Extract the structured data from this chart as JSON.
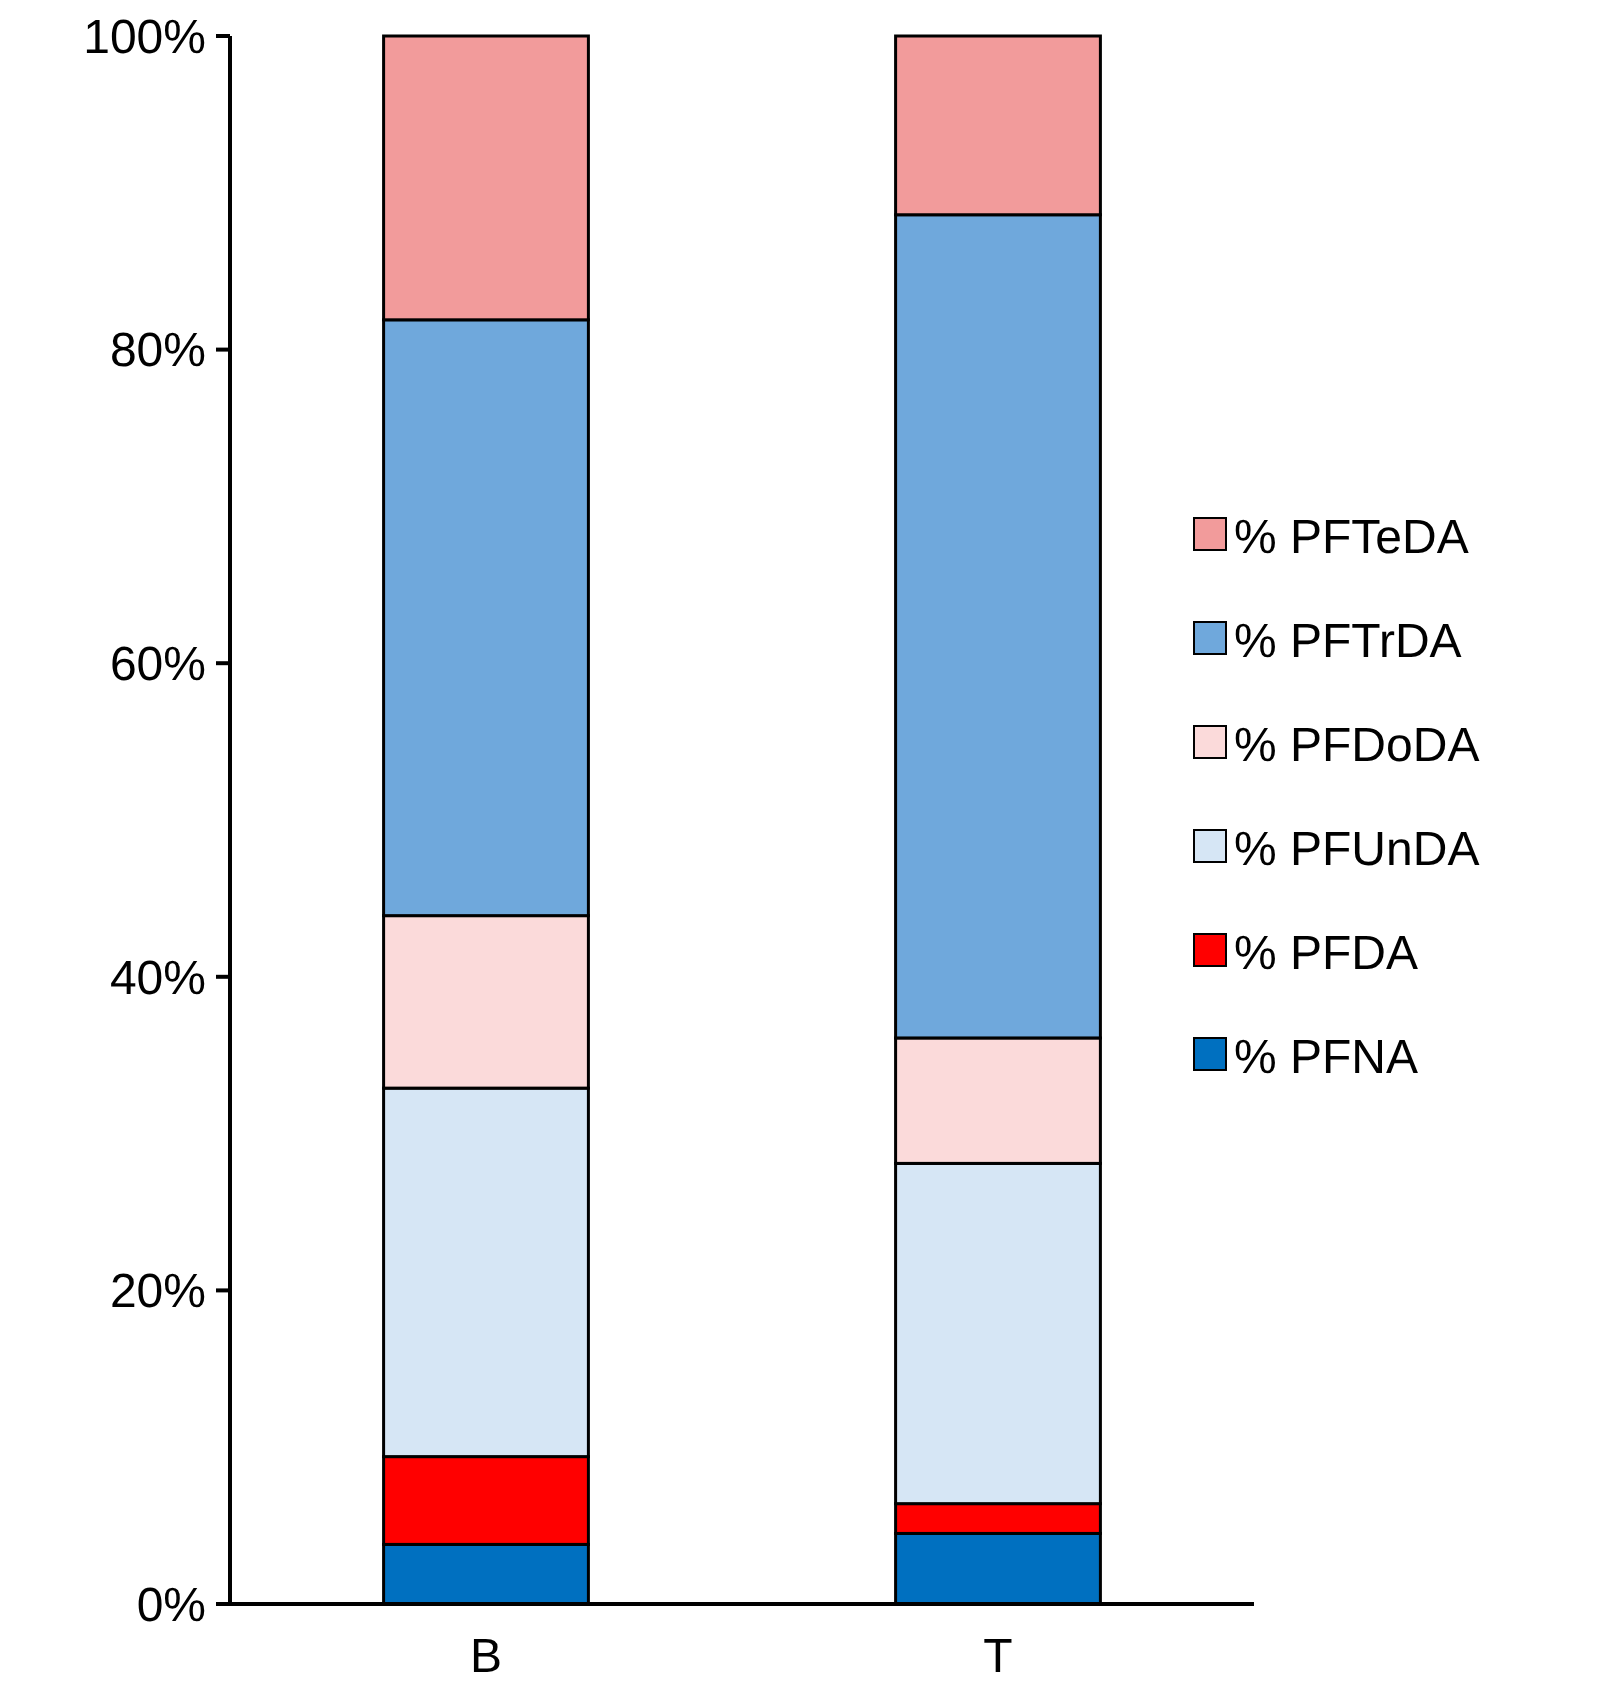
{
  "chart_data": {
    "type": "bar",
    "stacked": true,
    "categories": [
      "B",
      "T"
    ],
    "series": [
      {
        "name": "% PFNA",
        "color": "#0070c0",
        "values": [
          3.8,
          4.5
        ]
      },
      {
        "name": "% PFDA",
        "color": "#ff0000",
        "values": [
          5.6,
          1.9
        ]
      },
      {
        "name": "% PFUnDA",
        "color": "#d6e6f5",
        "values": [
          23.5,
          21.7
        ]
      },
      {
        "name": "% PFDoDA",
        "color": "#fbdada",
        "values": [
          11,
          8
        ]
      },
      {
        "name": "% PFTrDA",
        "color": "#6fa8dc",
        "values": [
          38,
          52.5
        ]
      },
      {
        "name": "% PFTeDA",
        "color": "#f29b9b",
        "values": [
          18.1,
          11.4
        ]
      }
    ],
    "ylim": [
      0,
      100
    ],
    "yticks": [
      {
        "value": 0,
        "label": "0%"
      },
      {
        "value": 20,
        "label": "20%"
      },
      {
        "value": 40,
        "label": "40%"
      },
      {
        "value": 60,
        "label": "60%"
      },
      {
        "value": 80,
        "label": "80%"
      },
      {
        "value": 100,
        "label": "100%"
      }
    ],
    "legend": "right",
    "grid": false
  }
}
